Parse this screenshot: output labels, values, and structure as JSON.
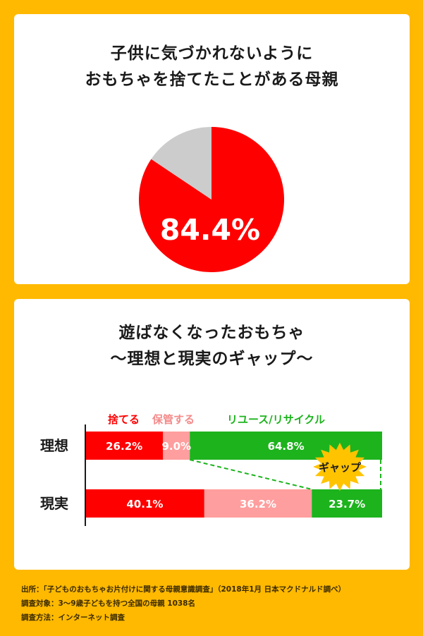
{
  "colors": {
    "background": "#FFB900",
    "red": "#FF0000",
    "gray": "#CCCCCC",
    "pink": "#FF9E9E",
    "green": "#1DB31D",
    "badge": "#FFC300"
  },
  "chart_data": [
    {
      "type": "pie",
      "title_lines": [
        "子供に気づかれないように",
        "おもちゃを捨てたことがある母親"
      ],
      "slices": [
        {
          "value": 84.4,
          "color": "#FF0000",
          "label": "84.4%"
        },
        {
          "value": 15.6,
          "color": "#CCCCCC",
          "label": ""
        }
      ]
    },
    {
      "type": "bar",
      "orientation": "horizontal",
      "stacked": true,
      "title_lines": [
        "遊ばなくなったおもちゃ",
        "〜理想と現実のギャップ〜"
      ],
      "categories": [
        "理想",
        "現実"
      ],
      "series": [
        {
          "name": "捨てる",
          "color": "#FF0000",
          "label_color": "#FF0000",
          "values": [
            26.2,
            40.1
          ],
          "labels": [
            "26.2%",
            "40.1%"
          ]
        },
        {
          "name": "保管する",
          "color": "#FF9E9E",
          "label_color": "#F48A8A",
          "values": [
            9.0,
            36.2
          ],
          "labels": [
            "9.0%",
            "36.2%"
          ]
        },
        {
          "name": "リユース/リサイクル",
          "color": "#1DB31D",
          "label_color": "#1DB31D",
          "values": [
            64.8,
            23.7
          ],
          "labels": [
            "64.8%",
            "23.7%"
          ]
        }
      ],
      "annotation": "ギャップ"
    }
  ],
  "footer": {
    "source": "出所：「子どものおもちゃお片付けに関する母親意識調査」（2018年1月 日本マクドナルド調べ）",
    "subjects": "調査対象：3〜9歳子どもを持つ全国の母親 1038名",
    "method": "調査方法：インターネット調査"
  }
}
